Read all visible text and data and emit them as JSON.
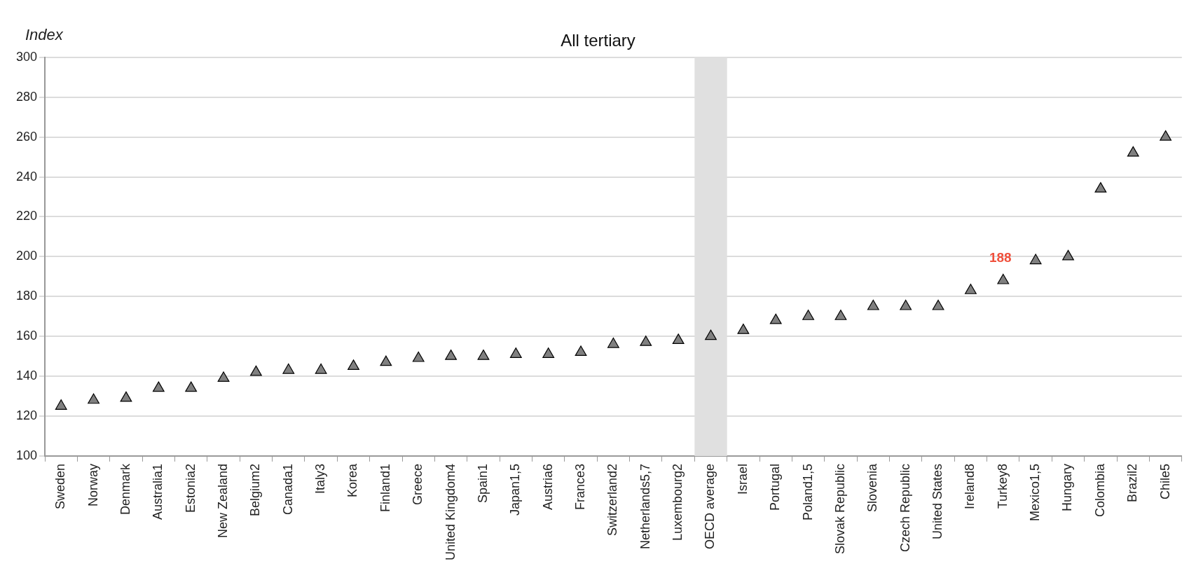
{
  "chart_data": {
    "type": "scatter",
    "title": "All tertiary",
    "ylabel": "Index",
    "categories": [
      "Sweden",
      "Norway",
      "Denmark",
      "Australia1",
      "Estonia2",
      "New Zealand",
      "Belgium2",
      "Canada1",
      "Italy3",
      "Korea",
      "Finland1",
      "Greece",
      "United Kingdom4",
      "Spain1",
      "Japan1,5",
      "Austria6",
      "France3",
      "Switzerland2",
      "Netherlands5,7",
      "Luxembourg2",
      "OECD average",
      "Israel",
      "Portugal",
      "Poland1,5",
      "Slovak Republic",
      "Slovenia",
      "Czech Republic",
      "United States",
      "Ireland8",
      "Turkey8",
      "Mexico1,5",
      "Hungary",
      "Colombia",
      "Brazil2",
      "Chile5"
    ],
    "values": [
      125,
      128,
      129,
      134,
      134,
      139,
      142,
      143,
      143,
      145,
      147,
      149,
      150,
      150,
      151,
      151,
      152,
      156,
      157,
      158,
      160,
      163,
      168,
      170,
      170,
      175,
      175,
      175,
      183,
      188,
      198,
      200,
      234,
      252,
      260
    ],
    "color": "#808080",
    "marker": "triangle",
    "ylim": [
      100,
      300
    ],
    "yticks": [
      100,
      120,
      140,
      160,
      180,
      200,
      220,
      240,
      260,
      280,
      300
    ],
    "grid": "y",
    "bands": [
      {
        "axis": "x",
        "from": "OECD average",
        "to": "OECD average",
        "color": "#e0e0e0"
      }
    ],
    "annotations": [
      {
        "text": "188",
        "x": "Turkey8",
        "y": 188
      }
    ]
  }
}
